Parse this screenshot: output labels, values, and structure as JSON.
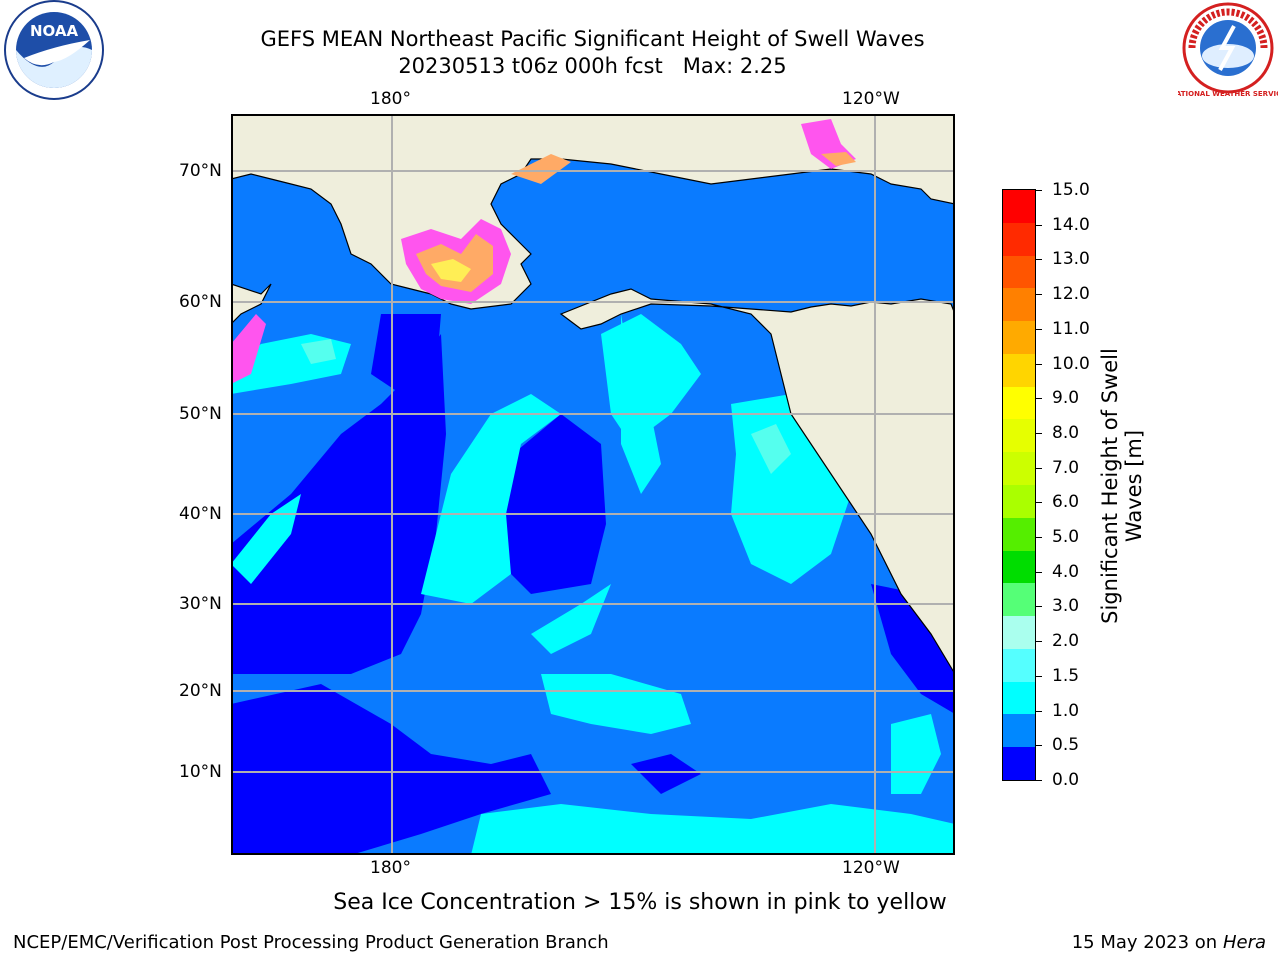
{
  "title_line1": "GEFS MEAN Northeast Pacific Significant Height of Swell Waves",
  "title_line2": "20230513 t06z 000h fcst   Max: 2.25",
  "lon_labels_top": [
    "180°",
    "120°W"
  ],
  "lon_labels_bottom": [
    "180°",
    "120°W"
  ],
  "lat_labels": [
    "70°N",
    "60°N",
    "50°N",
    "40°N",
    "30°N",
    "20°N",
    "10°N"
  ],
  "colorbar": {
    "label_line1": "Significant Height of Swell",
    "label_line2": "Waves [m]",
    "ticks": [
      "15.0",
      "14.0",
      "13.0",
      "12.0",
      "11.0",
      "10.0",
      "9.0",
      "8.0",
      "7.0",
      "6.0",
      "5.0",
      "4.0",
      "3.0",
      "2.0",
      "1.5",
      "1.0",
      "0.5",
      "0.0"
    ],
    "colors": [
      "#ff0000",
      "#ff2a00",
      "#ff5500",
      "#ff8000",
      "#ffaa00",
      "#ffd500",
      "#ffff00",
      "#e6ff00",
      "#ccff00",
      "#aaff00",
      "#55ee00",
      "#00dd00",
      "#55ff77",
      "#aaffee",
      "#55ffff",
      "#00ffff",
      "#0088ff",
      "#0000ff"
    ]
  },
  "sea_ice_note": "Sea Ice Concentration > 15% is shown in pink to yellow",
  "footer_left": "NCEP/EMC/Verification Post Processing Product Generation Branch",
  "footer_right_date": "15 May 2023 on",
  "footer_right_host": "Hera",
  "logos": {
    "left": "NOAA",
    "right": "NATIONAL WEATHER SERVICE"
  },
  "map_colors": {
    "land": "#efeedc",
    "ocean_dark": "#0000ff",
    "ocean_mid": "#0a7bff",
    "ocean_light": "#00ffff",
    "ocean_pale": "#55ffee",
    "ice_pink": "#ff55ee",
    "ice_orange": "#ffaa66",
    "ice_yellow": "#ffee55"
  }
}
